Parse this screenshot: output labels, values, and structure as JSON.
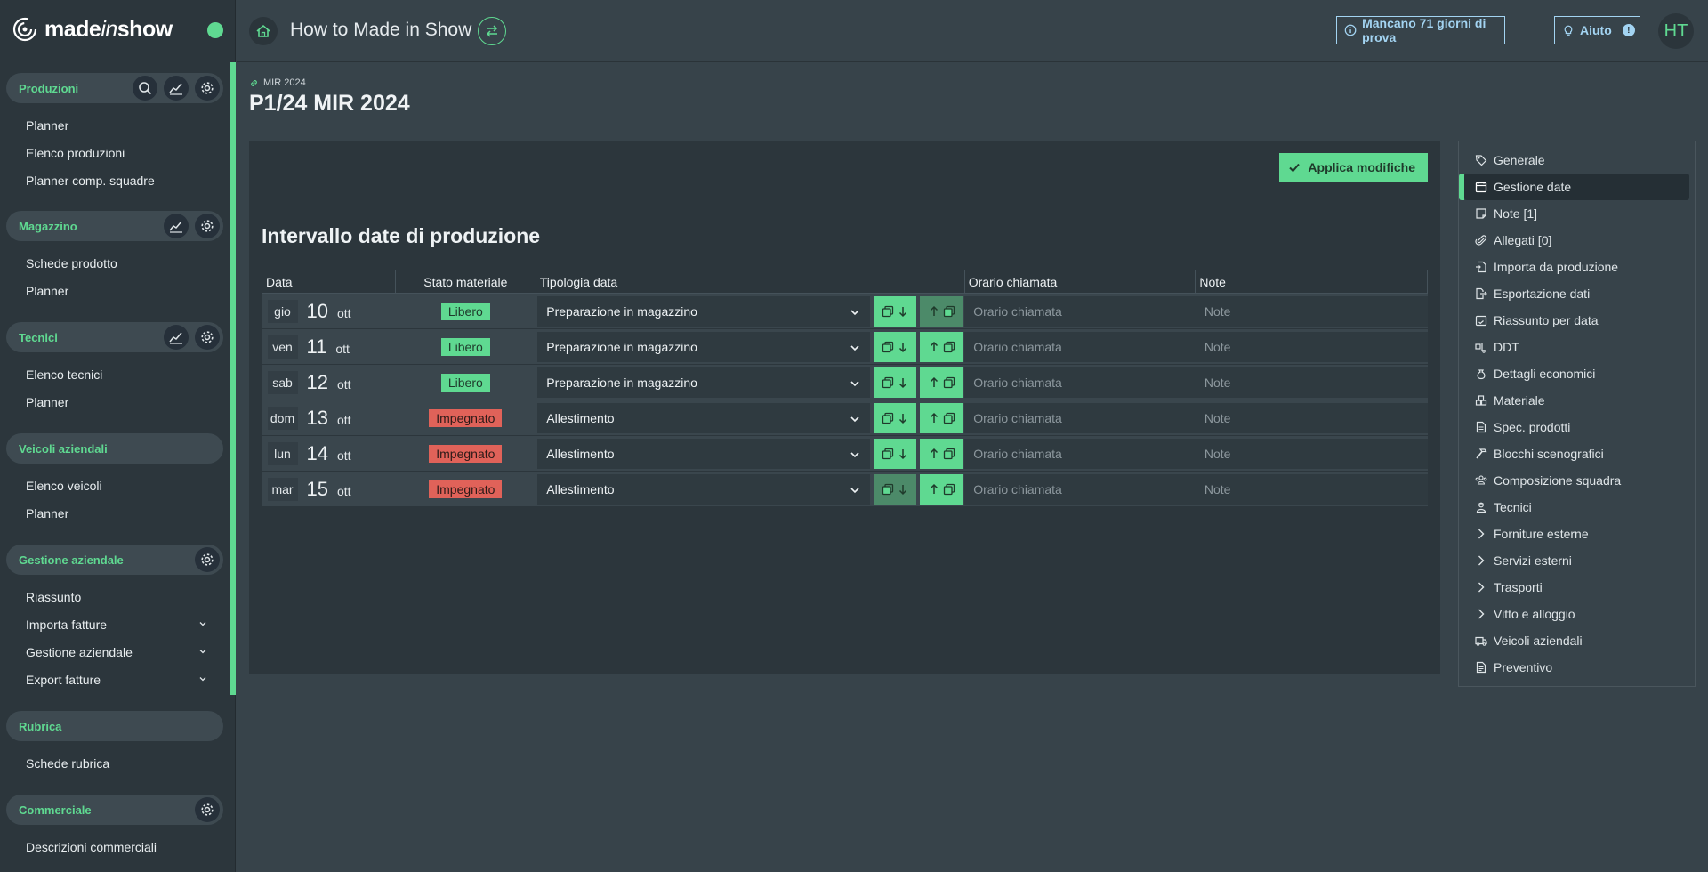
{
  "app": {
    "logo_text_a": "made",
    "logo_text_b": "in",
    "logo_text_c": "show",
    "title": "How to Made in Show",
    "trial_label": "Mancano 71 giorni di prova",
    "help_label": "Aiuto",
    "help_badge": "!",
    "avatar_initials": "HT"
  },
  "sidebar": {
    "sections": [
      {
        "title": "Produzioni",
        "items": [
          "Planner",
          "Elenco produzioni",
          "Planner comp. squadre"
        ]
      },
      {
        "title": "Magazzino",
        "items": [
          "Schede prodotto",
          "Planner"
        ]
      },
      {
        "title": "Tecnici",
        "items": [
          "Elenco tecnici",
          "Planner"
        ]
      },
      {
        "title": "Veicoli aziendali",
        "items": [
          "Elenco veicoli",
          "Planner"
        ]
      },
      {
        "title": "Gestione aziendale",
        "items": [
          "Riassunto",
          "Importa fatture",
          "Gestione aziendale",
          "Export fatture"
        ]
      },
      {
        "title": "Rubrica",
        "items": [
          "Schede rubrica"
        ]
      },
      {
        "title": "Commerciale",
        "items": [
          "Descrizioni commerciali"
        ]
      }
    ]
  },
  "breadcrumb": "MIR 2024",
  "page_title": "P1/24 MIR 2024",
  "panel": {
    "apply_label": "Applica modifiche",
    "heading": "Intervallo date di produzione",
    "columns": [
      "Data",
      "Stato materiale",
      "Tipologia data",
      "Orario chiamata",
      "Note"
    ],
    "orario_placeholder": "Orario chiamata",
    "note_placeholder": "Note",
    "rows": [
      {
        "day": "gio",
        "num": "10",
        "month": "ott",
        "stato": "Libero",
        "tipo": "Preparazione in magazzino"
      },
      {
        "day": "ven",
        "num": "11",
        "month": "ott",
        "stato": "Libero",
        "tipo": "Preparazione in magazzino"
      },
      {
        "day": "sab",
        "num": "12",
        "month": "ott",
        "stato": "Libero",
        "tipo": "Preparazione in magazzino"
      },
      {
        "day": "dom",
        "num": "13",
        "month": "ott",
        "stato": "Impegnato",
        "tipo": "Allestimento"
      },
      {
        "day": "lun",
        "num": "14",
        "month": "ott",
        "stato": "Impegnato",
        "tipo": "Allestimento"
      },
      {
        "day": "mar",
        "num": "15",
        "month": "ott",
        "stato": "Impegnato",
        "tipo": "Allestimento"
      }
    ]
  },
  "rightnav": {
    "items": [
      {
        "label": "Generale",
        "icon": "tag-icon"
      },
      {
        "label": "Gestione date",
        "icon": "calendar-icon"
      },
      {
        "label": "Note [1]",
        "icon": "note-icon"
      },
      {
        "label": "Allegati [0]",
        "icon": "paperclip-icon"
      },
      {
        "label": "Importa da produzione",
        "icon": "file-import-icon"
      },
      {
        "label": "Esportazione dati",
        "icon": "file-export-icon"
      },
      {
        "label": "Riassunto per data",
        "icon": "calendar-check-icon"
      },
      {
        "label": "DDT",
        "icon": "truck-loading-icon"
      },
      {
        "label": "Dettagli economici",
        "icon": "money-bag-icon"
      },
      {
        "label": "Materiale",
        "icon": "boxes-icon"
      },
      {
        "label": "Spec. prodotti",
        "icon": "file-spec-icon"
      },
      {
        "label": "Blocchi scenografici",
        "icon": "hammer-icon"
      },
      {
        "label": "Composizione squadra",
        "icon": "team-icon"
      },
      {
        "label": "Tecnici",
        "icon": "worker-icon"
      },
      {
        "label": "Forniture esterne",
        "icon": "chevron-right-icon"
      },
      {
        "label": "Servizi esterni",
        "icon": "chevron-right-icon"
      },
      {
        "label": "Trasporti",
        "icon": "chevron-right-icon"
      },
      {
        "label": "Vitto e alloggio",
        "icon": "chevron-right-icon"
      },
      {
        "label": "Veicoli aziendali",
        "icon": "van-icon"
      },
      {
        "label": "Preventivo",
        "icon": "invoice-icon"
      }
    ],
    "active_index": 1
  },
  "colors": {
    "accent": "#5fd991",
    "danger": "#e06259",
    "info": "#a3d4f2"
  }
}
